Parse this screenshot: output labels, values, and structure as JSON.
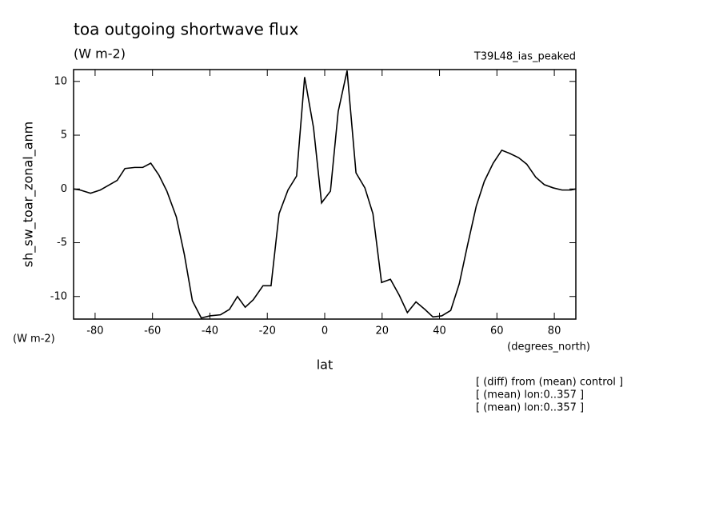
{
  "chart_data": {
    "type": "line",
    "title": "toa outgoing shortwave flux",
    "subtitle": "(W m-2)",
    "run_label": "T39L48_ias_peaked",
    "y_label": "sh_sw_toar_zonal_anm",
    "y_units": "(W m-2)",
    "x_units": "(degrees_north)",
    "x_label": "lat",
    "notes": [
      "[ (diff) from (mean) control ]",
      "[ (mean) lon:0..357 ]",
      "[ (mean) lon:0..357 ]"
    ],
    "xlim": [
      -87.5,
      87.5
    ],
    "ylim": [
      -12.1,
      11.1
    ],
    "xticks": [
      -80,
      -60,
      -40,
      -20,
      0,
      20,
      40,
      60,
      80
    ],
    "yticks": [
      -10,
      -5,
      0,
      5,
      10
    ],
    "x": [
      -87.5,
      -85.2,
      -81.6,
      -78.2,
      -72.3,
      -69.6,
      -66.2,
      -63.4,
      -60.6,
      -57.8,
      -55,
      -51.7,
      -48.9,
      -46.1,
      -43,
      -40,
      -36.3,
      -33.2,
      -30.4,
      -27.7,
      -24.9,
      -21.5,
      -18.7,
      -15.9,
      -12.8,
      -9.8,
      -7,
      -3.9,
      -1.1,
      2,
      4.7,
      7.8,
      10.9,
      14,
      16.8,
      19.8,
      22.9,
      26,
      28.8,
      31.8,
      34.9,
      37.7,
      40.8,
      43.9,
      46.9,
      49.7,
      52.8,
      55.6,
      58.7,
      61.7,
      64.5,
      67.6,
      70.4,
      73.5,
      76.5,
      79.6,
      82.7,
      85.8,
      87.5
    ],
    "series": [
      {
        "color": "#000000",
        "values": [
          0,
          -0.1,
          -0.4,
          -0.1,
          0.8,
          1.9,
          2.0,
          2.0,
          2.4,
          1.3,
          -0.2,
          -2.6,
          -6.1,
          -10.4,
          -12.0,
          -11.8,
          -11.7,
          -11.2,
          -10.0,
          -11.0,
          -10.3,
          -9.0,
          -9.0,
          -2.3,
          -0.1,
          1.2,
          10.4,
          5.7,
          -1.3,
          -0.2,
          7.2,
          11.0,
          1.5,
          0.1,
          -2.3,
          -8.7,
          -8.4,
          -9.9,
          -11.5,
          -10.5,
          -11.2,
          -11.9,
          -11.8,
          -11.3,
          -8.8,
          -5.3,
          -1.6,
          0.7,
          2.4,
          3.6,
          3.3,
          2.9,
          2.3,
          1.1,
          0.4,
          0.1,
          -0.1,
          -0.1,
          0
        ]
      }
    ]
  }
}
